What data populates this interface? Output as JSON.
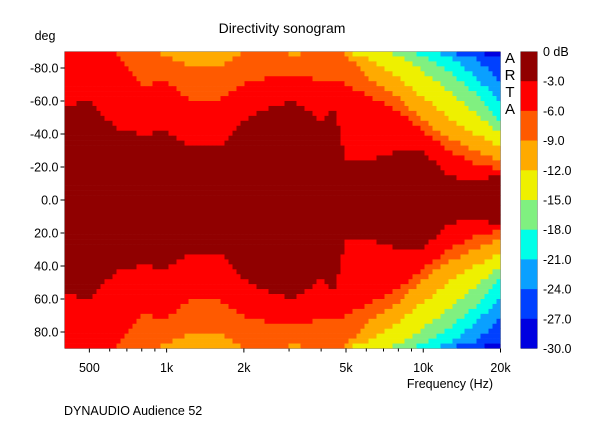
{
  "chart_data": {
    "type": "heatmap",
    "title": "Directivity sonogram",
    "ylabel": "deg",
    "xlabel": "Frequency (Hz)",
    "footer": "DYNAUDIO Audience 52",
    "watermark": "ARTA",
    "x_scale": "log",
    "xlim": [
      400,
      20000
    ],
    "ylim": [
      -90,
      90
    ],
    "x_ticks": [
      {
        "value": 500,
        "label": "500"
      },
      {
        "value": 1000,
        "label": "1k"
      },
      {
        "value": 2000,
        "label": "2k"
      },
      {
        "value": 5000,
        "label": "5k"
      },
      {
        "value": 10000,
        "label": "10k"
      },
      {
        "value": 20000,
        "label": "20k"
      }
    ],
    "x_minor_ticks": [
      600,
      700,
      800,
      900,
      3000,
      4000,
      6000,
      7000,
      8000,
      9000
    ],
    "y_ticks": [
      {
        "value": -80,
        "label": "-80.0"
      },
      {
        "value": -60,
        "label": "-60.0"
      },
      {
        "value": -40,
        "label": "-40.0"
      },
      {
        "value": -20,
        "label": "-20.0"
      },
      {
        "value": 0,
        "label": "0.0"
      },
      {
        "value": 20,
        "label": "20.0"
      },
      {
        "value": 40,
        "label": "40.0"
      },
      {
        "value": 60,
        "label": "60.0"
      },
      {
        "value": 80,
        "label": "80.0"
      }
    ],
    "colorbar": {
      "labels": [
        "0 dB",
        "-3.0",
        "-6.0",
        "-9.0",
        "-12.0",
        "-15.0",
        "-18.0",
        "-21.0",
        "-24.0",
        "-27.0",
        "-30.0"
      ],
      "band_colors": [
        "#900000",
        "#ff0000",
        "#ff5a00",
        "#ffaa00",
        "#eef000",
        "#80f080",
        "#00ffe8",
        "#0aa0ff",
        "#0040ff",
        "#0000e0"
      ]
    },
    "frequencies_hz": [
      400,
      500,
      630,
      800,
      1000,
      1250,
      1600,
      2000,
      2500,
      3150,
      4000,
      4500,
      5000,
      6300,
      8000,
      10000,
      12500,
      16000,
      20000
    ],
    "contours": [
      {
        "level_db": -3,
        "angle_deg": [
          57,
          60,
          44,
          40,
          41,
          32,
          32,
          48,
          56,
          60,
          48,
          55,
          24,
          24,
          30,
          30,
          14,
          12,
          15
        ]
      },
      {
        "level_db": -6,
        "angle_deg": [
          90,
          90,
          90,
          70,
          71,
          60,
          60,
          71,
          74,
          76,
          72,
          72,
          70,
          62,
          54,
          42,
          30,
          22,
          18
        ]
      },
      {
        "level_db": -9,
        "angle_deg": [
          90,
          90,
          90,
          90,
          88,
          80,
          80,
          90,
          90,
          88,
          90,
          90,
          88,
          72,
          62,
          48,
          38,
          30,
          24
        ]
      },
      {
        "level_db": -12,
        "angle_deg": [
          90,
          90,
          90,
          90,
          90,
          90,
          90,
          90,
          90,
          90,
          90,
          90,
          90,
          85,
          74,
          62,
          50,
          40,
          32
        ]
      },
      {
        "level_db": -15,
        "angle_deg": [
          90,
          90,
          90,
          90,
          90,
          90,
          90,
          90,
          90,
          90,
          90,
          90,
          90,
          90,
          88,
          78,
          66,
          52,
          40
        ]
      },
      {
        "level_db": -18,
        "angle_deg": [
          90,
          90,
          90,
          90,
          90,
          90,
          90,
          90,
          90,
          90,
          90,
          90,
          90,
          90,
          90,
          88,
          78,
          64,
          48
        ]
      },
      {
        "level_db": -21,
        "angle_deg": [
          90,
          90,
          90,
          90,
          90,
          90,
          90,
          90,
          90,
          90,
          90,
          90,
          90,
          90,
          90,
          90,
          88,
          75,
          58
        ]
      },
      {
        "level_db": -24,
        "angle_deg": [
          90,
          90,
          90,
          90,
          90,
          90,
          90,
          90,
          90,
          90,
          90,
          90,
          90,
          90,
          90,
          90,
          90,
          86,
          72
        ]
      },
      {
        "level_db": -27,
        "angle_deg": [
          90,
          90,
          90,
          90,
          90,
          90,
          90,
          90,
          90,
          90,
          90,
          90,
          90,
          90,
          90,
          90,
          90,
          90,
          86
        ]
      }
    ]
  }
}
